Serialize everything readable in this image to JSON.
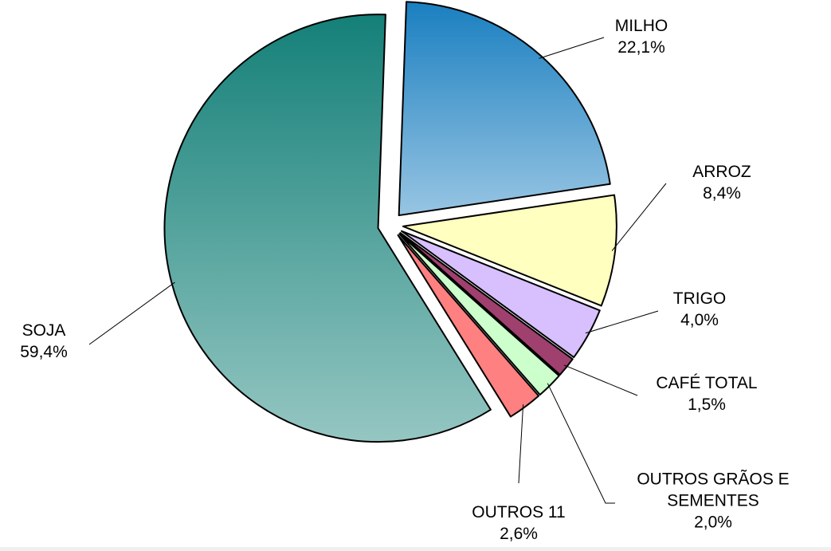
{
  "chart_data": {
    "type": "pie",
    "categories": [
      "MILHO",
      "ARROZ",
      "TRIGO",
      "CAFÉ TOTAL",
      "OUTROS GRÃOS E SEMENTES",
      "OUTROS 11",
      "SOJA"
    ],
    "values": [
      22.1,
      8.4,
      4.0,
      1.5,
      2.0,
      2.6,
      59.4
    ],
    "value_labels": [
      "22,1%",
      "8,4%",
      "4,0%",
      "1,5%",
      "2,0%",
      "2,6%",
      "59,4%"
    ],
    "colors": [
      "#1a7fc0",
      "#ffffc0",
      "#d8c0ff",
      "#a0406f",
      "#ccffcc",
      "#ff8080",
      "#148078"
    ]
  }
}
